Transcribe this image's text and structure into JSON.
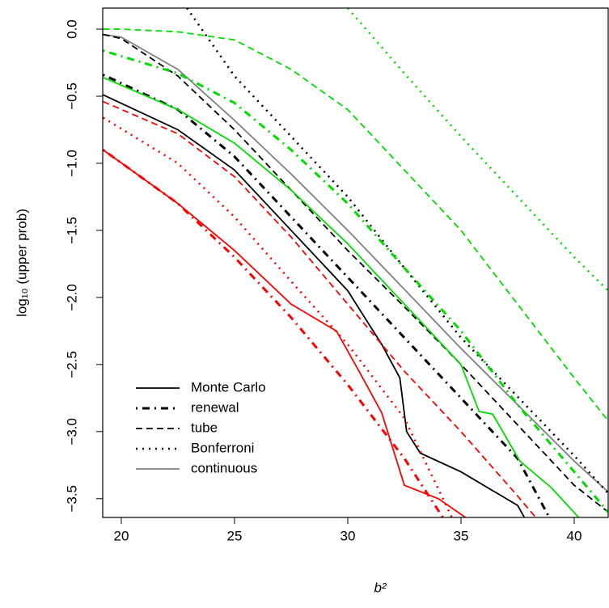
{
  "chart_data": {
    "type": "line",
    "xlabel": "b²",
    "ylabel": "log₁₀ (upper prob)",
    "xlim": [
      19.18,
      41.5
    ],
    "ylim": [
      -3.64,
      0.157
    ],
    "xticks": [
      20,
      25,
      30,
      35,
      40
    ],
    "yticks": [
      {
        "value": 0,
        "label": "0.0"
      },
      {
        "value": -0.5,
        "label": "−0.5"
      },
      {
        "value": -1,
        "label": "−1.0"
      },
      {
        "value": -1.5,
        "label": "−1.5"
      },
      {
        "value": -2,
        "label": "−2.0"
      },
      {
        "value": -2.5,
        "label": "−2.5"
      },
      {
        "value": -3,
        "label": "−3.0"
      },
      {
        "value": -3.5,
        "label": "−3.5"
      }
    ],
    "legend": [
      {
        "label": "Monte Carlo",
        "color": "#000000",
        "dash": "solid"
      },
      {
        "label": "renewal",
        "color": "#000000",
        "dash": "dashdot"
      },
      {
        "label": "tube",
        "color": "#000000",
        "dash": "dashed"
      },
      {
        "label": "Bonferroni",
        "color": "#000000",
        "dash": "dotted"
      },
      {
        "label": "continuous",
        "color": "#808080",
        "dash": "solid"
      }
    ],
    "series": [
      {
        "color": "#808080",
        "dash": "solid",
        "x": [
          19.2,
          20,
          22.5,
          25,
          27.5,
          30,
          32.5,
          35,
          37.5,
          40,
          41.5
        ],
        "values": [
          -0.04,
          -0.06,
          -0.3,
          -0.68,
          -1.08,
          -1.5,
          -1.94,
          -2.38,
          -2.8,
          -3.22,
          -3.45
        ]
      },
      {
        "color": "#000000",
        "dash": "dashed",
        "x": [
          19.2,
          20,
          22.5,
          25,
          27.5,
          30,
          32.5,
          35,
          37.5,
          40,
          41.5
        ],
        "values": [
          -0.04,
          -0.07,
          -0.35,
          -0.75,
          -1.2,
          -1.65,
          -2.07,
          -2.5,
          -2.95,
          -3.4,
          -3.6
        ]
      },
      {
        "color": "#000000",
        "dash": "dotted",
        "x": [
          22.9,
          25,
          27.5,
          30,
          32.5,
          35,
          37.5,
          40,
          41.5
        ],
        "values": [
          0.157,
          -0.35,
          -0.8,
          -1.25,
          -1.78,
          -2.3,
          -2.74,
          -3.18,
          -3.46
        ]
      },
      {
        "color": "#000000",
        "dash": "dashdot",
        "x": [
          19.2,
          22.5,
          25,
          27.5,
          30,
          32.5,
          35,
          37.5,
          38.9
        ],
        "values": [
          -0.34,
          -0.6,
          -0.95,
          -1.4,
          -1.85,
          -2.3,
          -2.75,
          -3.2,
          -3.64
        ]
      },
      {
        "color": "#000000",
        "dash": "solid",
        "x": [
          19.2,
          22.5,
          25,
          27.5,
          30,
          31.5,
          32.3,
          32.6,
          33.2,
          35,
          36.5,
          37.5,
          37.8
        ],
        "values": [
          -0.49,
          -0.75,
          -1.05,
          -1.5,
          -1.95,
          -2.35,
          -2.6,
          -3.0,
          -3.16,
          -3.3,
          -3.45,
          -3.55,
          -3.64
        ]
      },
      {
        "color": "#00dd00",
        "dash": "solid",
        "x": [
          19.2,
          22.5,
          25,
          27.5,
          30,
          32.5,
          35,
          35.8,
          36.4,
          37.6,
          39,
          40.2
        ],
        "values": [
          -0.36,
          -0.6,
          -0.85,
          -1.2,
          -1.6,
          -2.05,
          -2.5,
          -2.85,
          -2.87,
          -3.22,
          -3.42,
          -3.64
        ]
      },
      {
        "color": "#00dd00",
        "dash": "dashdot",
        "x": [
          19.2,
          22.5,
          25,
          27.5,
          30,
          32.5,
          35,
          37.5,
          40,
          41.5
        ],
        "values": [
          -0.16,
          -0.33,
          -0.55,
          -0.9,
          -1.3,
          -1.78,
          -2.25,
          -2.8,
          -3.3,
          -3.6
        ]
      },
      {
        "color": "#00dd00",
        "dash": "dashed",
        "x": [
          19.2,
          20,
          22.5,
          25,
          27.5,
          30,
          32.5,
          35,
          37.5,
          40,
          41.5
        ],
        "values": [
          0.0,
          0.0,
          -0.02,
          -0.08,
          -0.3,
          -0.6,
          -1.05,
          -1.5,
          -2.05,
          -2.6,
          -2.92
        ]
      },
      {
        "color": "#00dd00",
        "dash": "dotted",
        "x": [
          30,
          32.5,
          35,
          37.5,
          40,
          41.5
        ],
        "values": [
          0.157,
          -0.33,
          -0.8,
          -1.25,
          -1.7,
          -1.95
        ]
      },
      {
        "color": "#ff0000",
        "dash": "solid",
        "x": [
          19.2,
          22.5,
          25,
          27.5,
          29.5,
          30.5,
          31.5,
          32.5,
          34,
          35.2
        ],
        "values": [
          -0.9,
          -1.3,
          -1.65,
          -2.05,
          -2.25,
          -2.55,
          -2.86,
          -3.4,
          -3.5,
          -3.64
        ]
      },
      {
        "color": "#ff0000",
        "dash": "dashdot",
        "x": [
          19.2,
          22.5,
          25,
          27.5,
          30,
          32.5,
          34.2
        ],
        "values": [
          -0.9,
          -1.3,
          -1.7,
          -2.15,
          -2.65,
          -3.2,
          -3.64
        ]
      },
      {
        "color": "#ff0000",
        "dash": "dotted",
        "x": [
          19.2,
          22.5,
          25,
          27.5,
          30,
          32.5,
          34.6
        ],
        "values": [
          -0.66,
          -1.0,
          -1.4,
          -1.88,
          -2.35,
          -2.9,
          -3.64
        ]
      },
      {
        "color": "#ff0000",
        "dash": "dashed",
        "x": [
          19.2,
          22.5,
          25,
          27.5,
          30,
          32.5,
          35,
          37.5,
          38.3
        ],
        "values": [
          -0.54,
          -0.78,
          -1.1,
          -1.55,
          -2.05,
          -2.55,
          -3.0,
          -3.48,
          -3.64
        ]
      }
    ]
  }
}
